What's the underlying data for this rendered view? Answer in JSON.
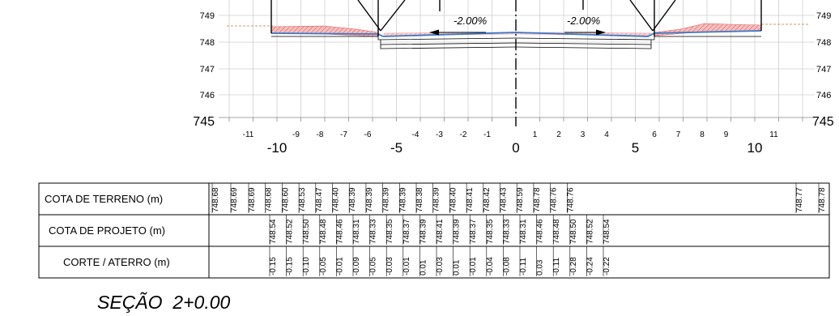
{
  "elevation_axis": {
    "left_labels": [
      "749",
      "748",
      "747",
      "746",
      "745"
    ],
    "right_labels": [
      "749",
      "748",
      "747",
      "746",
      "745"
    ]
  },
  "offset_axis": {
    "minor_labels": [
      "-11",
      "-9",
      "-8",
      "-7",
      "-6",
      "-4",
      "-3",
      "-2",
      "-1",
      "1",
      "2",
      "3",
      "4",
      "6",
      "7",
      "8",
      "9",
      "11"
    ],
    "major_labels": [
      "-10",
      "-5",
      "0",
      "5",
      "10"
    ]
  },
  "slope_labels": {
    "left": "-2.00%",
    "right": "-2.00%"
  },
  "table": {
    "row_labels": [
      "COTA DE TERRENO (m)",
      "COTA DE PROJETO (m)",
      "CORTE / ATERRO (m)"
    ],
    "terreno": [
      "748.68",
      "748.69",
      "748.69",
      "748.68",
      "748.60",
      "748.53",
      "748.47",
      "748.40",
      "748.39",
      "748.39",
      "748.39",
      "748.39",
      "748.38",
      "748.39",
      "748.40",
      "748.41",
      "748.42",
      "748.43",
      "748.59",
      "748.78",
      "748.76",
      "748.76",
      "748.77",
      "748.78"
    ],
    "projeto": [
      "748.54",
      "748.52",
      "748.50",
      "748.48",
      "748.46",
      "748.31",
      "748.33",
      "748.35",
      "748.37",
      "748.39",
      "748.41",
      "748.39",
      "748.37",
      "748.35",
      "748.33",
      "748.31",
      "748.46",
      "748.48",
      "748.50",
      "748.52",
      "748.54"
    ],
    "corte_aterro": [
      "-0.15",
      "-0.15",
      "-0.10",
      "-0.05",
      "-0.01",
      "-0.09",
      "-0.05",
      "-0.03",
      "-0.01",
      "0.01",
      "-0.03",
      "0.01",
      "-0.01",
      "-0.04",
      "-0.08",
      "-0.11",
      "0.03",
      "-0.11",
      "-0.28",
      "-0.24",
      "-0.22"
    ]
  },
  "section_title": "SEÇÃO  2+0.00",
  "colors": {
    "terrain_hatch": "#e06060",
    "design_line": "#3a78c8",
    "existing_ground": "#c87830"
  }
}
